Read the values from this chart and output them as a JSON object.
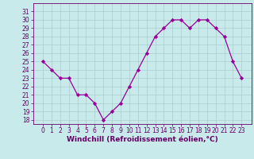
{
  "x": [
    0,
    1,
    2,
    3,
    4,
    5,
    6,
    7,
    8,
    9,
    10,
    11,
    12,
    13,
    14,
    15,
    16,
    17,
    18,
    19,
    20,
    21,
    22,
    23
  ],
  "y": [
    25,
    24,
    23,
    23,
    21,
    21,
    20,
    18,
    19,
    20,
    22,
    24,
    26,
    28,
    29,
    30,
    30,
    29,
    30,
    30,
    29,
    28,
    25,
    23
  ],
  "line_color": "#990099",
  "marker": "D",
  "marker_size": 2.2,
  "bg_color": "#c8eaea",
  "grid_color": "#aacccc",
  "xlabel": "Windchill (Refroidissement éolien,°C)",
  "xlabel_fontsize": 6.5,
  "tick_fontsize": 5.5,
  "ylim": [
    17.5,
    32.0
  ],
  "yticks": [
    18,
    19,
    20,
    21,
    22,
    23,
    24,
    25,
    26,
    27,
    28,
    29,
    30,
    31
  ],
  "xticks": [
    0,
    1,
    2,
    3,
    4,
    5,
    6,
    7,
    8,
    9,
    10,
    11,
    12,
    13,
    14,
    15,
    16,
    17,
    18,
    19,
    20,
    21,
    22,
    23
  ],
  "spine_color": "#660066",
  "label_color": "#660066",
  "linewidth": 0.9
}
